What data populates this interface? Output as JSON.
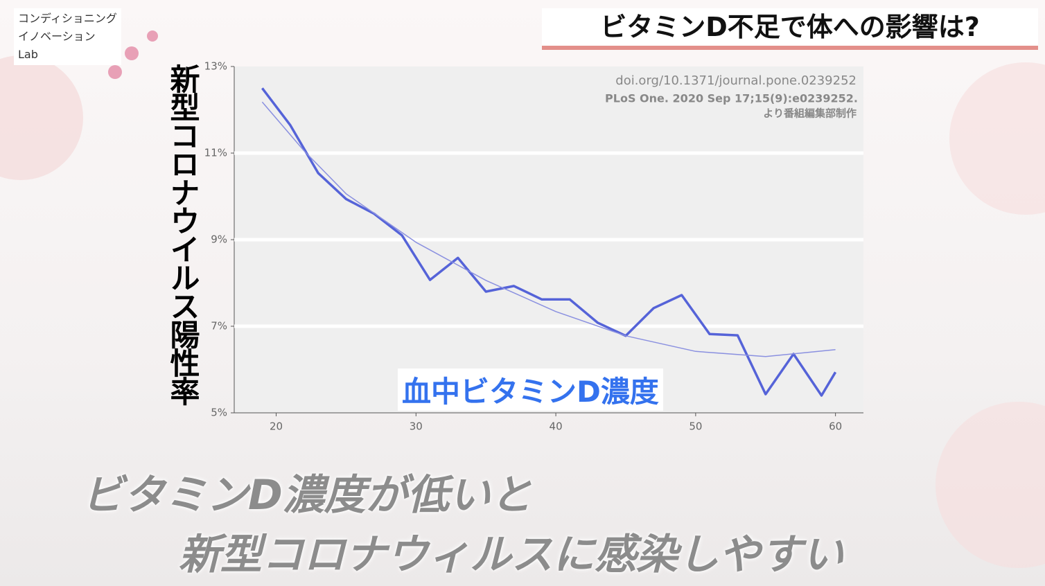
{
  "logo": {
    "lines": [
      "コンディショニング",
      "イノベーション",
      "Lab"
    ]
  },
  "banner": {
    "title": "ビタミンD不足で体への影響は?"
  },
  "caption": {
    "lines": [
      "ビタミンD濃度が低いと",
      "新型コロナウィルスに感染しやすい"
    ]
  },
  "chart_data": {
    "type": "line",
    "y_label": "新型コロナウイルス陽性率",
    "x_label": "血中ビタミンD濃度",
    "annotations": [
      "doi.org/10.1371/journal.pone.0239252",
      "PLoS One. 2020 Sep 17;15(9):e0239252.",
      "より番組編集部制作"
    ],
    "xlim": [
      17,
      62
    ],
    "ylim": [
      5,
      13
    ],
    "xticks": [
      20,
      30,
      40,
      50,
      60
    ],
    "yticks": [
      {
        "value": 5,
        "label": "5%"
      },
      {
        "value": 7,
        "label": "7%"
      },
      {
        "value": 9,
        "label": "9%"
      },
      {
        "value": 11,
        "label": "11%"
      },
      {
        "value": 13,
        "label": "13%"
      }
    ],
    "grid": true,
    "series": [
      {
        "color": "#5563d8",
        "width": 3.5,
        "x": [
          19,
          21,
          23,
          25,
          27,
          29,
          31,
          33,
          35,
          37,
          39,
          41,
          43,
          45,
          47,
          49,
          51,
          53,
          55,
          57,
          59,
          60
        ],
        "values": [
          12.5,
          11.65,
          10.54,
          9.94,
          9.6,
          9.1,
          8.07,
          8.58,
          7.8,
          7.93,
          7.62,
          7.62,
          7.08,
          6.78,
          7.42,
          7.72,
          6.82,
          6.79,
          5.43,
          6.36,
          5.4,
          5.94
        ]
      },
      {
        "color": "#8a90e0",
        "width": 1.5,
        "x": [
          19,
          22,
          25,
          30,
          35,
          40,
          45,
          50,
          55,
          60
        ],
        "values": [
          12.18,
          11.05,
          10.06,
          8.94,
          8.06,
          7.34,
          6.78,
          6.42,
          6.3,
          6.46
        ]
      }
    ]
  }
}
